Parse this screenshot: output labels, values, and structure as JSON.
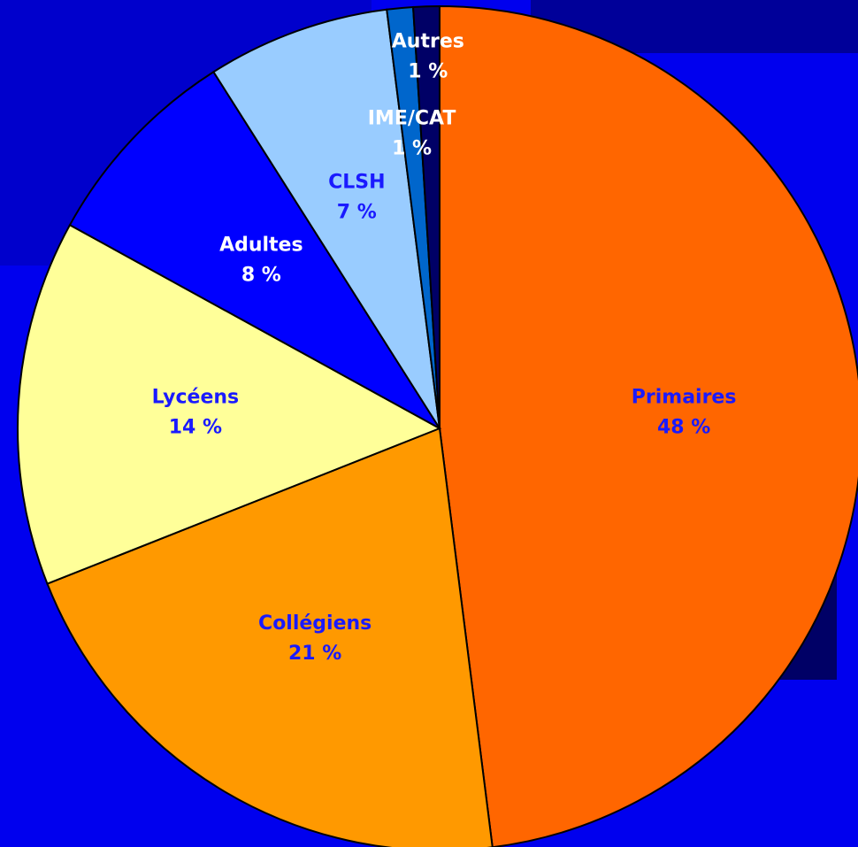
{
  "chart_data": {
    "type": "pie",
    "categories": [
      "Primaires",
      "Collégiens",
      "Lycéens",
      "Adultes",
      "CLSH",
      "IME/CAT",
      "Autres"
    ],
    "values": [
      48,
      21,
      14,
      8,
      7,
      1,
      1
    ],
    "value_labels": [
      "48 %",
      "21 %",
      "14 %",
      "8 %",
      "7 %",
      "1 %",
      "1 %"
    ],
    "colors": [
      "#ff6600",
      "#ff9900",
      "#ffff99",
      "#0000ff",
      "#99ccff",
      "#0066cc",
      "#000066"
    ],
    "label_colors": [
      "#1a1aff",
      "#1a1aff",
      "#1a1aff",
      "#ffffff",
      "#1a1aff",
      "#ffffff",
      "#ffffff"
    ]
  }
}
